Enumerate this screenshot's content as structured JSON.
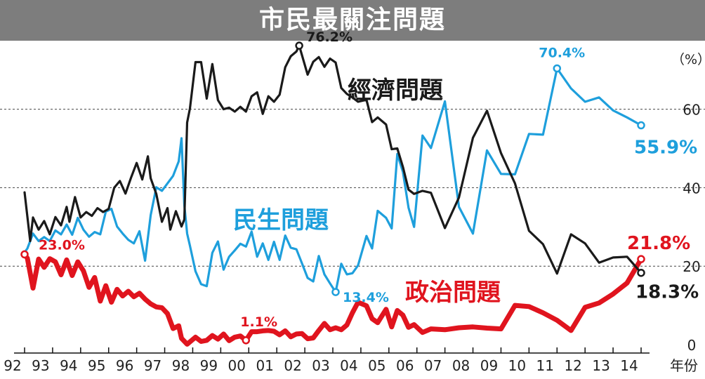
{
  "title": "市民最關注問題",
  "chart_data": {
    "type": "line",
    "title": "市民最關注問題",
    "xlabel": "年份",
    "ylabel": "（%）",
    "ylim": [
      0,
      72
    ],
    "x_ticks": [
      "92",
      "93",
      "94",
      "95",
      "96",
      "97",
      "98",
      "99",
      "00",
      "01",
      "02",
      "03",
      "04",
      "05",
      "06",
      "07",
      "08",
      "09",
      "10",
      "11",
      "12",
      "13",
      "14"
    ],
    "y_ticks": [
      0,
      20,
      40,
      60
    ],
    "grid": "horizontal dashed",
    "legend": "inline labels",
    "series": [
      {
        "name": "經濟問題",
        "color": "#1a1a1a",
        "points": [
          [
            1992.0,
            38.8
          ],
          [
            1992.2,
            26.4
          ],
          [
            1992.3,
            32.4
          ],
          [
            1992.5,
            29.3
          ],
          [
            1992.7,
            31.5
          ],
          [
            1992.9,
            28.1
          ],
          [
            1993.1,
            32.5
          ],
          [
            1993.3,
            30.4
          ],
          [
            1993.5,
            35.1
          ],
          [
            1993.6,
            31.3
          ],
          [
            1993.8,
            37.6
          ],
          [
            1994.0,
            32.4
          ],
          [
            1994.2,
            33.8
          ],
          [
            1994.4,
            32.8
          ],
          [
            1994.6,
            34.8
          ],
          [
            1994.8,
            33.8
          ],
          [
            1995.0,
            34.6
          ],
          [
            1995.2,
            40.0
          ],
          [
            1995.4,
            41.7
          ],
          [
            1995.6,
            38.5
          ],
          [
            1995.8,
            42.6
          ],
          [
            1996.0,
            46.3
          ],
          [
            1996.2,
            42.1
          ],
          [
            1996.4,
            48.0
          ],
          [
            1996.5,
            42.4
          ],
          [
            1996.7,
            38.4
          ],
          [
            1996.9,
            31.3
          ],
          [
            1997.1,
            34.8
          ],
          [
            1997.2,
            29.3
          ],
          [
            1997.4,
            34.0
          ],
          [
            1997.6,
            30.1
          ],
          [
            1997.7,
            31.9
          ],
          [
            1997.8,
            56.6
          ],
          [
            1997.9,
            60.2
          ],
          [
            1998.1,
            72.0
          ],
          [
            1998.3,
            72.0
          ],
          [
            1998.5,
            62.7
          ],
          [
            1998.7,
            71.5
          ],
          [
            1998.9,
            62.3
          ],
          [
            1999.1,
            60.0
          ],
          [
            1999.3,
            60.4
          ],
          [
            1999.5,
            59.4
          ],
          [
            1999.7,
            60.6
          ],
          [
            1999.9,
            59.4
          ],
          [
            2000.1,
            63.3
          ],
          [
            2000.3,
            64.3
          ],
          [
            2000.5,
            58.8
          ],
          [
            2000.7,
            63.3
          ],
          [
            2000.9,
            61.9
          ],
          [
            2001.1,
            63.7
          ],
          [
            2001.3,
            70.7
          ],
          [
            2001.5,
            73.5
          ],
          [
            2001.7,
            74.7
          ],
          [
            2001.8,
            76.2
          ],
          [
            2002.1,
            68.8
          ],
          [
            2002.3,
            72.1
          ],
          [
            2002.5,
            73.3
          ],
          [
            2002.7,
            70.8
          ],
          [
            2002.9,
            72.9
          ],
          [
            2003.1,
            71.9
          ],
          [
            2003.3,
            65.4
          ],
          [
            2003.5,
            63.9
          ],
          [
            2003.7,
            63.0
          ],
          [
            2003.9,
            61.9
          ],
          [
            2004.2,
            62.4
          ],
          [
            2004.4,
            56.7
          ],
          [
            2004.6,
            57.9
          ],
          [
            2004.9,
            56.1
          ],
          [
            2005.1,
            49.8
          ],
          [
            2005.3,
            50.0
          ],
          [
            2005.5,
            45.3
          ],
          [
            2005.7,
            39.5
          ],
          [
            2005.9,
            38.4
          ],
          [
            2006.2,
            39.2
          ],
          [
            2006.5,
            38.7
          ],
          [
            2007.0,
            29.7
          ],
          [
            2007.5,
            37.5
          ],
          [
            2008.0,
            52.7
          ],
          [
            2008.5,
            59.6
          ],
          [
            2009.0,
            48.8
          ],
          [
            2009.5,
            41.1
          ],
          [
            2010.0,
            29.0
          ],
          [
            2010.5,
            25.6
          ],
          [
            2011.0,
            18.1
          ],
          [
            2011.5,
            28.1
          ],
          [
            2012.0,
            25.8
          ],
          [
            2012.5,
            20.9
          ],
          [
            2013.0,
            22.2
          ],
          [
            2013.5,
            22.4
          ],
          [
            2014.0,
            18.3
          ]
        ]
      },
      {
        "name": "民生問題",
        "color": "#1e9fdc",
        "points": [
          [
            1992.0,
            23.5
          ],
          [
            1992.1,
            24.5
          ],
          [
            1992.3,
            28.3
          ],
          [
            1992.5,
            26.4
          ],
          [
            1992.7,
            27.4
          ],
          [
            1992.9,
            26.4
          ],
          [
            1993.1,
            29.1
          ],
          [
            1993.3,
            28.1
          ],
          [
            1993.5,
            30.6
          ],
          [
            1993.7,
            28.0
          ],
          [
            1993.9,
            32.3
          ],
          [
            1994.1,
            29.3
          ],
          [
            1994.3,
            27.5
          ],
          [
            1994.5,
            28.7
          ],
          [
            1994.7,
            28.1
          ],
          [
            1994.9,
            33.9
          ],
          [
            1995.1,
            34.6
          ],
          [
            1995.3,
            30.1
          ],
          [
            1995.5,
            28.3
          ],
          [
            1995.7,
            26.7
          ],
          [
            1995.9,
            25.8
          ],
          [
            1996.1,
            28.9
          ],
          [
            1996.3,
            21.4
          ],
          [
            1996.5,
            33.0
          ],
          [
            1996.7,
            40.1
          ],
          [
            1996.9,
            39.2
          ],
          [
            1997.1,
            41.1
          ],
          [
            1997.3,
            43.0
          ],
          [
            1997.5,
            46.7
          ],
          [
            1997.6,
            52.6
          ],
          [
            1997.7,
            35.6
          ],
          [
            1997.8,
            28.3
          ],
          [
            1997.9,
            25.2
          ],
          [
            1998.1,
            18.7
          ],
          [
            1998.3,
            15.4
          ],
          [
            1998.5,
            14.9
          ],
          [
            1998.7,
            23.4
          ],
          [
            1998.9,
            26.3
          ],
          [
            1999.1,
            19.1
          ],
          [
            1999.3,
            22.4
          ],
          [
            1999.5,
            24.0
          ],
          [
            1999.7,
            25.7
          ],
          [
            1999.9,
            25.0
          ],
          [
            2000.1,
            28.8
          ],
          [
            2000.3,
            22.4
          ],
          [
            2000.5,
            25.8
          ],
          [
            2000.7,
            21.6
          ],
          [
            2000.9,
            26.2
          ],
          [
            2001.1,
            21.6
          ],
          [
            2001.3,
            27.8
          ],
          [
            2001.5,
            24.7
          ],
          [
            2001.7,
            24.3
          ],
          [
            2001.9,
            20.7
          ],
          [
            2002.1,
            17.0
          ],
          [
            2002.3,
            16.1
          ],
          [
            2002.5,
            22.6
          ],
          [
            2002.7,
            17.9
          ],
          [
            2002.9,
            15.6
          ],
          [
            2003.1,
            13.4
          ],
          [
            2003.3,
            20.6
          ],
          [
            2003.5,
            17.9
          ],
          [
            2003.7,
            18.2
          ],
          [
            2003.9,
            20.2
          ],
          [
            2004.2,
            27.7
          ],
          [
            2004.4,
            24.5
          ],
          [
            2004.6,
            34.1
          ],
          [
            2004.9,
            32.3
          ],
          [
            2005.1,
            29.6
          ],
          [
            2005.3,
            48.6
          ],
          [
            2005.5,
            44.0
          ],
          [
            2005.7,
            34.9
          ],
          [
            2005.9,
            30.0
          ],
          [
            2006.2,
            53.3
          ],
          [
            2006.5,
            50.1
          ],
          [
            2007.0,
            62.0
          ],
          [
            2007.5,
            35.1
          ],
          [
            2008.0,
            28.3
          ],
          [
            2008.5,
            49.5
          ],
          [
            2009.0,
            43.5
          ],
          [
            2009.5,
            43.4
          ],
          [
            2010.0,
            53.7
          ],
          [
            2010.5,
            53.5
          ],
          [
            2011.0,
            70.4
          ],
          [
            2011.5,
            65.3
          ],
          [
            2012.0,
            61.9
          ],
          [
            2012.5,
            63.0
          ],
          [
            2013.0,
            59.7
          ],
          [
            2013.5,
            57.9
          ],
          [
            2014.0,
            55.9
          ]
        ]
      },
      {
        "name": "政治問題",
        "color": "#e0141e",
        "points": [
          [
            1992.0,
            23.0
          ],
          [
            1992.1,
            22.0
          ],
          [
            1992.3,
            14.4
          ],
          [
            1992.5,
            21.8
          ],
          [
            1992.7,
            19.7
          ],
          [
            1992.9,
            21.9
          ],
          [
            1993.1,
            21.1
          ],
          [
            1993.3,
            17.8
          ],
          [
            1993.5,
            21.6
          ],
          [
            1993.7,
            17.6
          ],
          [
            1993.9,
            21.1
          ],
          [
            1994.1,
            18.8
          ],
          [
            1994.3,
            14.6
          ],
          [
            1994.5,
            17.1
          ],
          [
            1994.7,
            11.1
          ],
          [
            1994.9,
            15.0
          ],
          [
            1995.1,
            10.8
          ],
          [
            1995.3,
            14.1
          ],
          [
            1995.5,
            12.4
          ],
          [
            1995.7,
            13.6
          ],
          [
            1995.9,
            12.2
          ],
          [
            1996.1,
            13.1
          ],
          [
            1996.3,
            11.6
          ],
          [
            1996.5,
            10.4
          ],
          [
            1996.7,
            9.6
          ],
          [
            1996.9,
            9.4
          ],
          [
            1997.1,
            7.9
          ],
          [
            1997.3,
            4.1
          ],
          [
            1997.5,
            4.8
          ],
          [
            1997.6,
            1.6
          ],
          [
            1997.8,
            0.1
          ],
          [
            1998.1,
            1.9
          ],
          [
            1998.3,
            0.8
          ],
          [
            1998.5,
            1.1
          ],
          [
            1998.7,
            2.3
          ],
          [
            1998.9,
            1.4
          ],
          [
            1999.1,
            2.7
          ],
          [
            1999.3,
            1.0
          ],
          [
            1999.5,
            1.9
          ],
          [
            1999.7,
            2.2
          ],
          [
            1999.9,
            1.1
          ],
          [
            2000.1,
            3.3
          ],
          [
            2000.3,
            3.3
          ],
          [
            2000.5,
            3.5
          ],
          [
            2000.7,
            3.6
          ],
          [
            2000.9,
            3.4
          ],
          [
            2001.1,
            2.5
          ],
          [
            2001.3,
            3.5
          ],
          [
            2001.5,
            2.0
          ],
          [
            2001.7,
            2.7
          ],
          [
            2001.9,
            2.8
          ],
          [
            2002.1,
            1.5
          ],
          [
            2002.3,
            1.7
          ],
          [
            2002.5,
            3.6
          ],
          [
            2002.7,
            5.4
          ],
          [
            2002.9,
            3.8
          ],
          [
            2003.1,
            4.3
          ],
          [
            2003.3,
            3.8
          ],
          [
            2003.5,
            5.0
          ],
          [
            2003.7,
            8.1
          ],
          [
            2003.9,
            10.8
          ],
          [
            2004.2,
            9.9
          ],
          [
            2004.4,
            6.6
          ],
          [
            2004.6,
            5.6
          ],
          [
            2004.9,
            9.0
          ],
          [
            2005.1,
            4.5
          ],
          [
            2005.3,
            8.7
          ],
          [
            2005.5,
            7.5
          ],
          [
            2005.7,
            4.4
          ],
          [
            2005.9,
            5.1
          ],
          [
            2006.2,
            3.1
          ],
          [
            2006.5,
            4.0
          ],
          [
            2007.0,
            3.8
          ],
          [
            2007.5,
            4.3
          ],
          [
            2008.0,
            4.5
          ],
          [
            2008.5,
            4.2
          ],
          [
            2009.0,
            4.0
          ],
          [
            2009.5,
            10.0
          ],
          [
            2010.0,
            9.7
          ],
          [
            2010.5,
            8.1
          ],
          [
            2011.0,
            6.2
          ],
          [
            2011.5,
            3.6
          ],
          [
            2012.0,
            9.5
          ],
          [
            2012.5,
            10.6
          ],
          [
            2013.0,
            12.9
          ],
          [
            2013.5,
            15.7
          ],
          [
            2014.0,
            21.8
          ]
        ]
      }
    ],
    "series_labels": [
      {
        "series": "經濟問題",
        "text": "經濟問題"
      },
      {
        "series": "民生問題",
        "text": "民生問題"
      },
      {
        "series": "政治問題",
        "text": "政治問題"
      }
    ],
    "annotations": [
      {
        "series": "經濟問題",
        "x": 2001.8,
        "y": 76.2,
        "text": "76.2%"
      },
      {
        "series": "經濟問題",
        "x": 2014.0,
        "y": 18.3,
        "text": "18.3%"
      },
      {
        "series": "民生問題",
        "x": 2011.0,
        "y": 70.4,
        "text": "70.4%"
      },
      {
        "series": "民生問題",
        "x": 2003.1,
        "y": 13.4,
        "text": "13.4%"
      },
      {
        "series": "民生問題",
        "x": 2014.0,
        "y": 55.9,
        "text": "55.9%"
      },
      {
        "series": "政治問題",
        "x": 1992.0,
        "y": 23.0,
        "text": "23.0%"
      },
      {
        "series": "政治問題",
        "x": 1999.9,
        "y": 1.1,
        "text": "1.1%"
      },
      {
        "series": "政治問題",
        "x": 2014.0,
        "y": 21.8,
        "text": "21.8%"
      }
    ]
  }
}
